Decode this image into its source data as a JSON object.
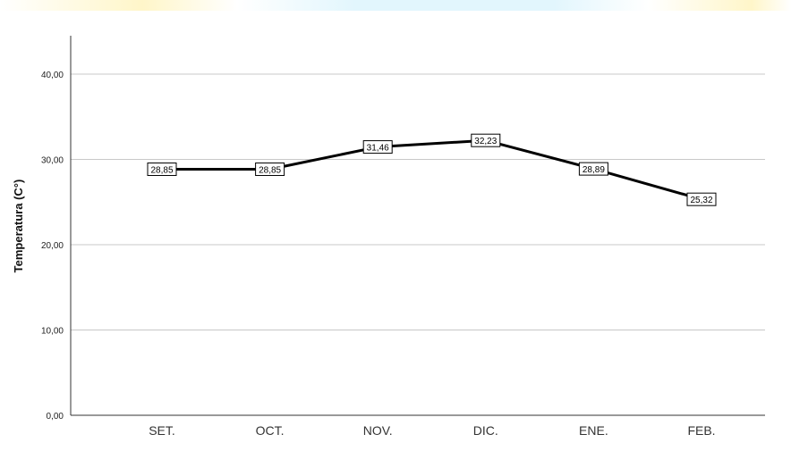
{
  "chart_data": {
    "type": "line",
    "categories": [
      "SET.",
      "OCT.",
      "NOV.",
      "DIC.",
      "ENE.",
      "FEB."
    ],
    "series": [
      {
        "values": [
          28.85,
          28.85,
          31.46,
          32.23,
          28.89,
          25.32
        ],
        "labels": [
          "28,85",
          "28,85",
          "31,46",
          "32,23",
          "28,89",
          "25,32"
        ]
      }
    ],
    "ylabel": "Temperatura (C°)",
    "ylim": [
      0,
      40
    ],
    "yticks": [
      0,
      10,
      20,
      30,
      40
    ],
    "ytick_labels": [
      "0,00",
      "10,00",
      "20,00",
      "30,00",
      "40,00"
    ],
    "grid": true,
    "line_color": "#000000"
  }
}
